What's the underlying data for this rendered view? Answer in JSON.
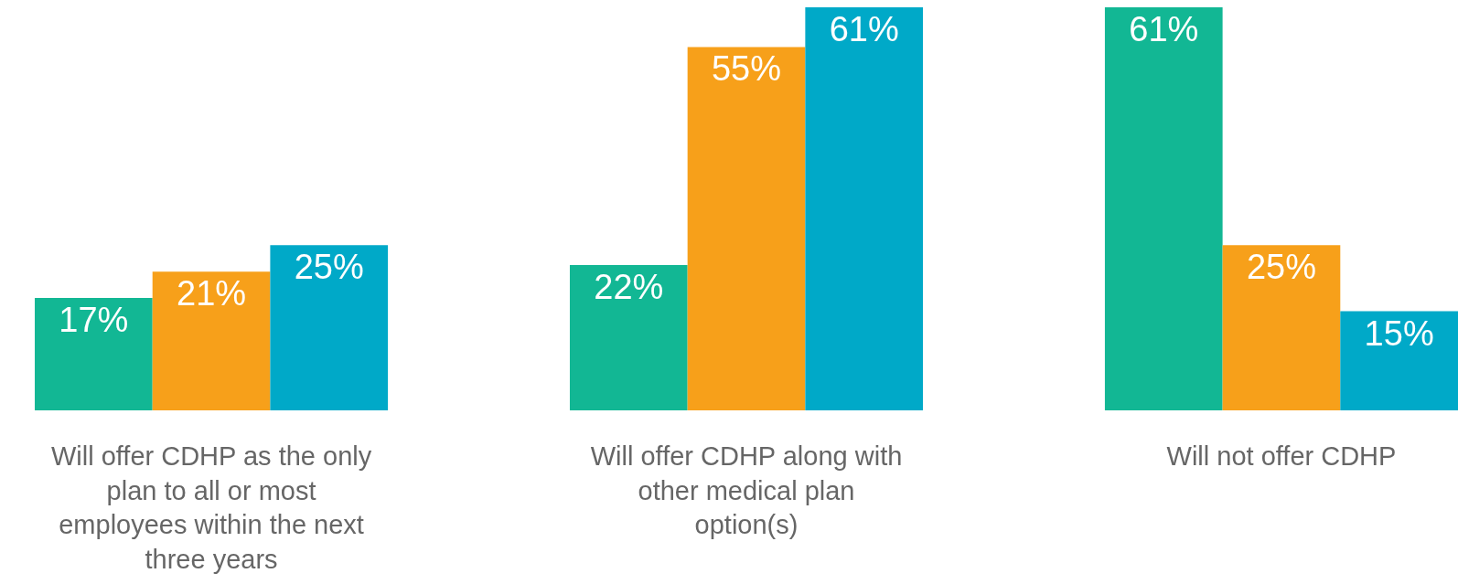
{
  "chart_data": {
    "type": "bar",
    "tick_labels": "x",
    "categories": [
      "Will offer CDHP as the only plan to all or most employees within the next three years",
      "Will offer CDHP along with other medical plan option(s)",
      "Will not offer CDHP"
    ],
    "series": [
      {
        "color": "#12b794",
        "values": [
          17,
          22,
          61
        ],
        "value_labels": [
          "17%",
          "22%",
          "61%"
        ]
      },
      {
        "color": "#f7a01a",
        "values": [
          21,
          55,
          25
        ],
        "value_labels": [
          "21%",
          "55%",
          "25%"
        ]
      },
      {
        "color": "#00a9c8",
        "values": [
          25,
          61,
          15
        ],
        "value_labels": [
          "25%",
          "61%",
          "15%"
        ]
      }
    ]
  }
}
